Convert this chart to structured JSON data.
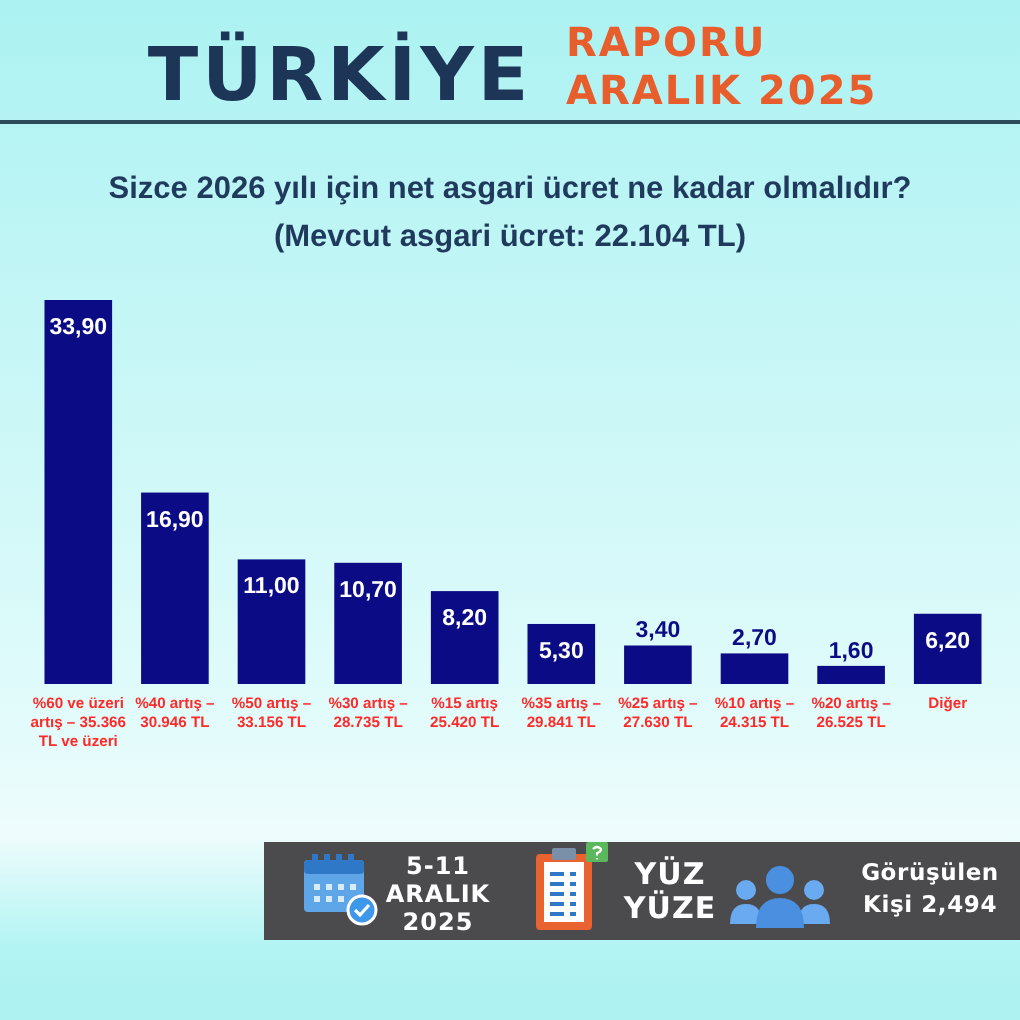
{
  "chart_data": {
    "type": "bar",
    "title": "Sizce 2026 yılı için net asgari ücret ne kadar olmalıdır?",
    "subtitle": "(Mevcut asgari ücret: 22.104 TL)",
    "categories": [
      "%60 ve üzeri artış – 35.366 TL ve üzeri",
      "%40 artış – 30.946 TL",
      "%50 artış – 33.156 TL",
      "%30 artış – 28.735 TL",
      "%15 artış 25.420 TL",
      "%35 artış – 29.841 TL",
      "%25 artış – 27.630 TL",
      "%10 artış – 24.315 TL",
      "%20 artış – 26.525 TL",
      "Diğer"
    ],
    "values": [
      33.9,
      16.9,
      11.0,
      10.7,
      8.2,
      5.3,
      3.4,
      2.7,
      1.6,
      6.2
    ],
    "value_labels": [
      "33,90",
      "16,90",
      "11,00",
      "10,70",
      "8,20",
      "5,30",
      "3,40",
      "2,70",
      "1,60",
      "6,20"
    ],
    "color": "#0b0b85",
    "annotations": [
      "TÜRKİYE",
      "RAPORU",
      "ARALIK 2025",
      "5-11 ARALIK 2025",
      "YÜZ YÜZE",
      "Görüşülen Kişi 2,494"
    ]
  }
}
